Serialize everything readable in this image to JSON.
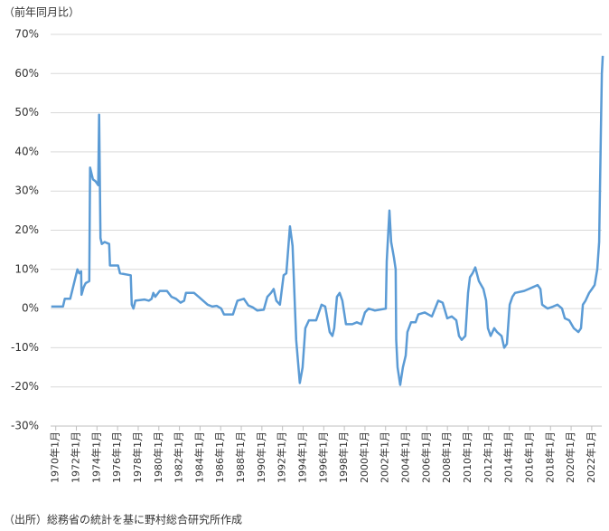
{
  "chart_data": {
    "type": "line",
    "title": "（前年同月比）",
    "source": "（出所）総務省の統計を基に野村総合研究所作成",
    "x": [
      1969.56,
      1970,
      1970.7,
      1970.88,
      1971.4,
      1972.1,
      1972.28,
      1972.46,
      1972.5,
      1972.72,
      1972.9,
      1973.25,
      1973.33,
      1973.6,
      1973.86,
      1974.12,
      1974.21,
      1974.34,
      1974.47,
      1974.74,
      1975.18,
      1975.26,
      1976.05,
      1976.23,
      1977.28,
      1977.37,
      1977.54,
      1977.72,
      1978.6,
      1979.04,
      1979.3,
      1979.47,
      1979.65,
      1980.09,
      1980.79,
      1981.23,
      1981.67,
      1982.11,
      1982.46,
      1982.63,
      1983.42,
      1983.86,
      1984.3,
      1984.74,
      1985.18,
      1985.61,
      1986.05,
      1986.32,
      1987.19,
      1987.37,
      1987.63,
      1988.25,
      1988.68,
      1989.12,
      1989.56,
      1990.18,
      1990.53,
      1990.88,
      1991.14,
      1991.4,
      1991.75,
      1992.11,
      1992.37,
      1992.72,
      1992.98,
      1993.33,
      1993.68,
      1993.95,
      1994.21,
      1994.56,
      1995.26,
      1995.79,
      1996.14,
      1996.58,
      1996.84,
      1997.02,
      1997.28,
      1997.54,
      1997.81,
      1998.16,
      1998.77,
      1999.21,
      1999.65,
      2000,
      2000.35,
      2000.96,
      2002.02,
      2002.11,
      2002.37,
      2002.54,
      2002.81,
      2002.98,
      2003.03,
      2003.16,
      2003.42,
      2003.68,
      2003.95,
      2004.12,
      2004.47,
      2004.91,
      2005.18,
      2005.79,
      2006.49,
      2007.11,
      2007.54,
      2007.98,
      2008.42,
      2008.86,
      2009.12,
      2009.39,
      2009.74,
      2010,
      2010.18,
      2010.44,
      2010.7,
      2011.05,
      2011.49,
      2011.75,
      2011.93,
      2012.19,
      2012.54,
      2012.81,
      2013.25,
      2013.51,
      2013.77,
      2014.04,
      2014.3,
      2014.56,
      2015.44,
      2015.88,
      2016.32,
      2016.75,
      2017.02,
      2017.19,
      2017.72,
      2018.25,
      2018.68,
      2019.12,
      2019.39,
      2019.82,
      2020.26,
      2020.7,
      2020.96,
      2021.14,
      2021.4,
      2021.75,
      2022.02,
      2022.28,
      2022.54,
      2022.72,
      2022.89,
      2022.98,
      2023.07
    ],
    "series": [
      {
        "color": "#5b9bd5",
        "values": [
          0.5,
          0.5,
          0.5,
          2.5,
          2.5,
          10,
          9,
          9.5,
          3.5,
          5.5,
          6.5,
          7,
          36,
          33,
          32.5,
          31.5,
          49.5,
          18,
          16.5,
          17,
          16.5,
          11,
          11,
          9,
          8.5,
          1,
          0,
          2,
          2.3,
          2,
          2.5,
          4,
          3,
          4.5,
          4.5,
          3,
          2.5,
          1.5,
          2,
          4,
          4,
          3,
          2,
          1,
          0.5,
          0.7,
          0,
          -1.5,
          -1.5,
          0,
          2,
          2.5,
          0.8,
          0.3,
          -0.5,
          -0.3,
          3,
          4,
          5,
          2,
          1,
          8.5,
          9,
          21,
          16,
          -8,
          -19,
          -15,
          -5,
          -3,
          -3,
          1,
          0.5,
          -6,
          -7,
          -5,
          3,
          4,
          2,
          -4,
          -4,
          -3.5,
          -4,
          -1,
          0,
          -0.5,
          0,
          12,
          25,
          17,
          13,
          10,
          -8,
          -15,
          -19.5,
          -15,
          -12,
          -6,
          -3.5,
          -3.5,
          -1.5,
          -1,
          -2,
          2,
          1.5,
          -2.5,
          -2,
          -3,
          -7,
          -8,
          -7,
          4,
          8,
          9,
          10.5,
          7,
          5,
          2,
          -5,
          -7,
          -5,
          -6,
          -7,
          -10,
          -9,
          1,
          3,
          4,
          4.5,
          5,
          5.5,
          6,
          5,
          1,
          0,
          0.5,
          1,
          0,
          -2.5,
          -3,
          -5,
          -6,
          -5,
          1,
          2,
          4,
          5,
          6,
          10,
          17,
          45,
          60,
          64.5
        ]
      }
    ],
    "xlim": [
      1969.5,
      2023.5
    ],
    "xticks": [
      {
        "value": 1970,
        "label": "1970年1月"
      },
      {
        "value": 1972,
        "label": "1972年1月"
      },
      {
        "value": 1974,
        "label": "1974年1月"
      },
      {
        "value": 1976,
        "label": "1976年1月"
      },
      {
        "value": 1978,
        "label": "1978年1月"
      },
      {
        "value": 1980,
        "label": "1980年1月"
      },
      {
        "value": 1982,
        "label": "1982年1月"
      },
      {
        "value": 1984,
        "label": "1984年1月"
      },
      {
        "value": 1986,
        "label": "1986年1月"
      },
      {
        "value": 1988,
        "label": "1988年1月"
      },
      {
        "value": 1990,
        "label": "1990年1月"
      },
      {
        "value": 1992,
        "label": "1992年1月"
      },
      {
        "value": 1994,
        "label": "1994年1月"
      },
      {
        "value": 1996,
        "label": "1996年1月"
      },
      {
        "value": 1998,
        "label": "1998年1月"
      },
      {
        "value": 2000,
        "label": "2000年1月"
      },
      {
        "value": 2002,
        "label": "2002年1月"
      },
      {
        "value": 2004,
        "label": "2004年1月"
      },
      {
        "value": 2006,
        "label": "2006年1月"
      },
      {
        "value": 2008,
        "label": "2008年1月"
      },
      {
        "value": 2010,
        "label": "2010年1月"
      },
      {
        "value": 2012,
        "label": "2012年1月"
      },
      {
        "value": 2014,
        "label": "2014年1月"
      },
      {
        "value": 2016,
        "label": "2016年1月"
      },
      {
        "value": 2018,
        "label": "2018年1月"
      },
      {
        "value": 2020,
        "label": "2020年1月"
      },
      {
        "value": 2022,
        "label": "2022年1月"
      }
    ],
    "ylim": [
      -30,
      70
    ],
    "yticks": [
      {
        "value": -30,
        "label": "-30%"
      },
      {
        "value": -20,
        "label": "-20%"
      },
      {
        "value": -10,
        "label": "-10%"
      },
      {
        "value": 0,
        "label": "0%"
      },
      {
        "value": 10,
        "label": "10%"
      },
      {
        "value": 20,
        "label": "20%"
      },
      {
        "value": 30,
        "label": "30%"
      },
      {
        "value": 40,
        "label": "40%"
      },
      {
        "value": 50,
        "label": "50%"
      },
      {
        "value": 60,
        "label": "60%"
      },
      {
        "value": 70,
        "label": "70%"
      }
    ],
    "grid": true
  }
}
